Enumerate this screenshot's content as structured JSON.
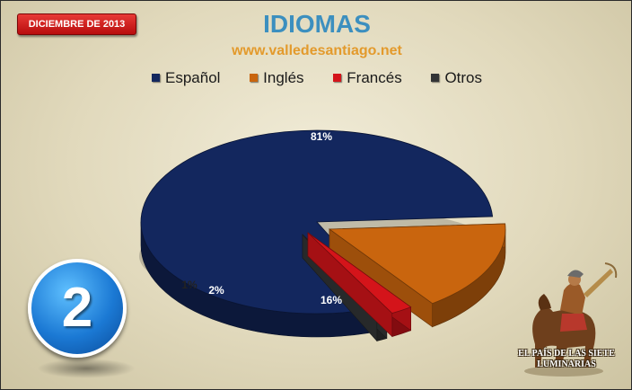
{
  "header": {
    "date_badge": "DICIEMBRE DE 2013",
    "title": "IDIOMAS",
    "url": "www.valledesantiago.net"
  },
  "chart_data": {
    "type": "pie",
    "title": "IDIOMAS",
    "categories": [
      "Español",
      "Inglés",
      "Francés",
      "Otros"
    ],
    "values": [
      81,
      16,
      2,
      1
    ],
    "labels": [
      "81%",
      "16%",
      "2%",
      "1%"
    ],
    "colors": [
      "#13275e",
      "#c9650e",
      "#d4141a",
      "#323436"
    ],
    "exploded": [
      "Inglés",
      "Francés",
      "Otros"
    ],
    "legend_position": "top"
  },
  "badge": {
    "number": "2",
    "color": "#1b79d4"
  },
  "logo": {
    "line1": "EL PAÍS DE LAS SIETE",
    "line2": "LUMINARIAS"
  }
}
